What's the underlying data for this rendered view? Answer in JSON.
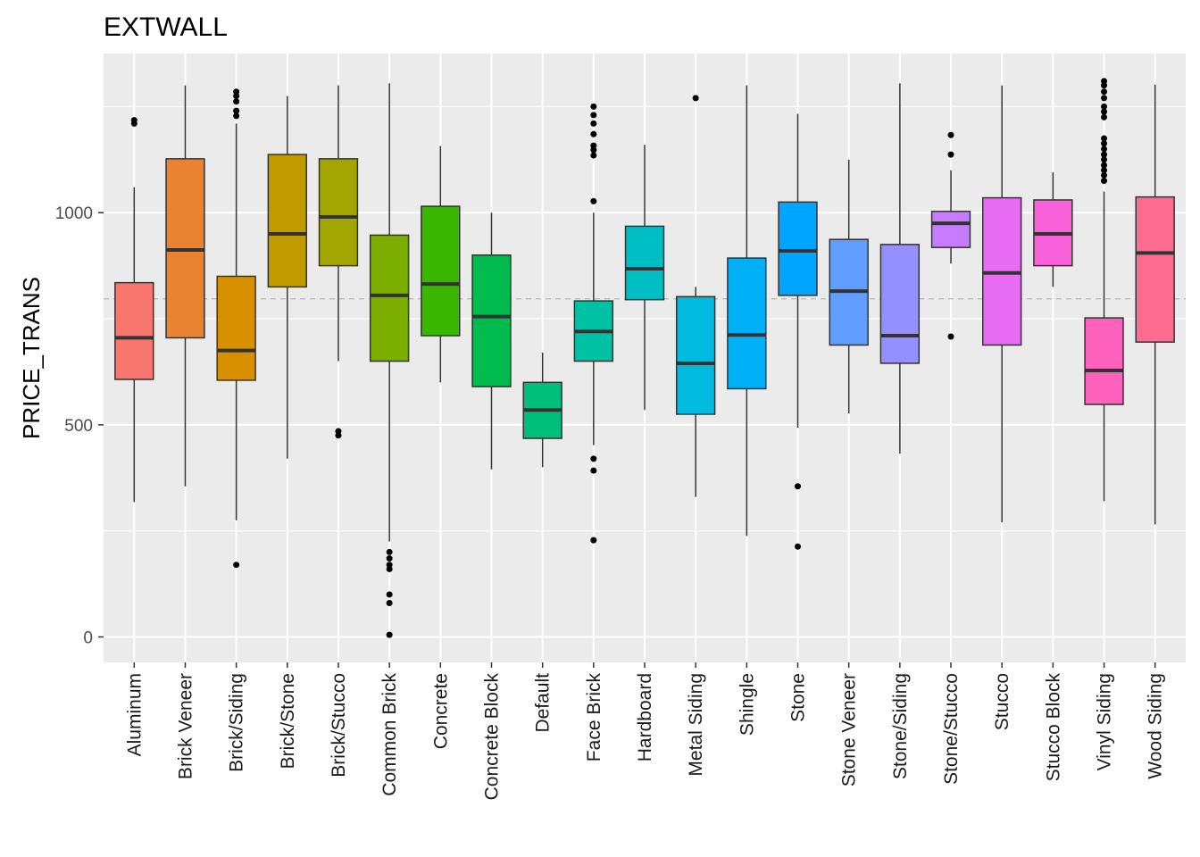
{
  "chart_data": {
    "type": "boxplot",
    "title": "EXTWALL",
    "xlabel": "",
    "ylabel": "PRICE_TRANS",
    "ylim": [
      -60,
      1375
    ],
    "yticks": [
      0,
      500,
      1000
    ],
    "grid": true,
    "legend": "none",
    "reference_line": {
      "y": 797,
      "style": "dashed",
      "color": "#bfbfbf"
    },
    "categories": [
      "Aluminum",
      "Brick Veneer",
      "Brick/Siding",
      "Brick/Stone",
      "Brick/Stucco",
      "Common Brick",
      "Concrete",
      "Concrete Block",
      "Default",
      "Face Brick",
      "Hardboard",
      "Metal Siding",
      "Shingle",
      "Stone",
      "Stone Veneer",
      "Stone/Siding",
      "Stone/Stucco",
      "Stucco",
      "Stucco Block",
      "Vinyl Siding",
      "Wood Siding"
    ],
    "colors": [
      "#F8766D",
      "#EA8331",
      "#D89000",
      "#C09B00",
      "#A3A500",
      "#7CAE00",
      "#39B600",
      "#00BB4E",
      "#00BF7D",
      "#00C1A3",
      "#00BFC4",
      "#00BAE0",
      "#00B0F6",
      "#00A5FF",
      "#619CFF",
      "#9590FF",
      "#C77CFF",
      "#E76BF3",
      "#FA62DB",
      "#FF62BC",
      "#FF6C91"
    ],
    "boxes": [
      {
        "whisker_low": 318,
        "q1": 607,
        "median": 705,
        "q3": 835,
        "whisker_high": 1060,
        "outliers": [
          1210,
          1218
        ]
      },
      {
        "whisker_low": 355,
        "q1": 705,
        "median": 912,
        "q3": 1127,
        "whisker_high": 1300,
        "outliers": []
      },
      {
        "whisker_low": 275,
        "q1": 605,
        "median": 675,
        "q3": 850,
        "whisker_high": 1210,
        "outliers": [
          170,
          1228,
          1240,
          1262,
          1275,
          1285
        ]
      },
      {
        "whisker_low": 420,
        "q1": 825,
        "median": 950,
        "q3": 1137,
        "whisker_high": 1275,
        "outliers": []
      },
      {
        "whisker_low": 650,
        "q1": 875,
        "median": 990,
        "q3": 1127,
        "whisker_high": 1300,
        "outliers": [
          475,
          485
        ]
      },
      {
        "whisker_low": 225,
        "q1": 650,
        "median": 805,
        "q3": 947,
        "whisker_high": 1305,
        "outliers": [
          5,
          80,
          100,
          160,
          170,
          185,
          200
        ]
      },
      {
        "whisker_low": 600,
        "q1": 710,
        "median": 832,
        "q3": 1015,
        "whisker_high": 1157,
        "outliers": []
      },
      {
        "whisker_low": 395,
        "q1": 590,
        "median": 755,
        "q3": 900,
        "whisker_high": 1000,
        "outliers": []
      },
      {
        "whisker_low": 400,
        "q1": 468,
        "median": 535,
        "q3": 600,
        "whisker_high": 670,
        "outliers": []
      },
      {
        "whisker_low": 452,
        "q1": 650,
        "median": 720,
        "q3": 792,
        "whisker_high": 1000,
        "outliers": [
          228,
          392,
          420,
          1027,
          1135,
          1148,
          1158,
          1185,
          1210,
          1230,
          1250
        ]
      },
      {
        "whisker_low": 535,
        "q1": 795,
        "median": 868,
        "q3": 968,
        "whisker_high": 1160,
        "outliers": []
      },
      {
        "whisker_low": 330,
        "q1": 525,
        "median": 645,
        "q3": 802,
        "whisker_high": 825,
        "outliers": [
          1270
        ]
      },
      {
        "whisker_low": 238,
        "q1": 585,
        "median": 712,
        "q3": 893,
        "whisker_high": 1300,
        "outliers": []
      },
      {
        "whisker_low": 493,
        "q1": 805,
        "median": 910,
        "q3": 1025,
        "whisker_high": 1233,
        "outliers": [
          213,
          355
        ]
      },
      {
        "whisker_low": 527,
        "q1": 688,
        "median": 815,
        "q3": 937,
        "whisker_high": 1125,
        "outliers": []
      },
      {
        "whisker_low": 432,
        "q1": 645,
        "median": 710,
        "q3": 925,
        "whisker_high": 1305,
        "outliers": []
      },
      {
        "whisker_low": 880,
        "q1": 918,
        "median": 975,
        "q3": 1003,
        "whisker_high": 1100,
        "outliers": [
          708,
          1137,
          1183
        ]
      },
      {
        "whisker_low": 270,
        "q1": 688,
        "median": 858,
        "q3": 1035,
        "whisker_high": 1300,
        "outliers": []
      },
      {
        "whisker_low": 825,
        "q1": 875,
        "median": 950,
        "q3": 1030,
        "whisker_high": 1095,
        "outliers": []
      },
      {
        "whisker_low": 320,
        "q1": 548,
        "median": 628,
        "q3": 752,
        "whisker_high": 1050,
        "outliers": [
          1075,
          1088,
          1100,
          1112,
          1125,
          1137,
          1150,
          1163,
          1175,
          1225,
          1238,
          1250,
          1270,
          1285,
          1300,
          1310
        ]
      },
      {
        "whisker_low": 265,
        "q1": 695,
        "median": 905,
        "q3": 1037,
        "whisker_high": 1302,
        "outliers": []
      }
    ]
  }
}
